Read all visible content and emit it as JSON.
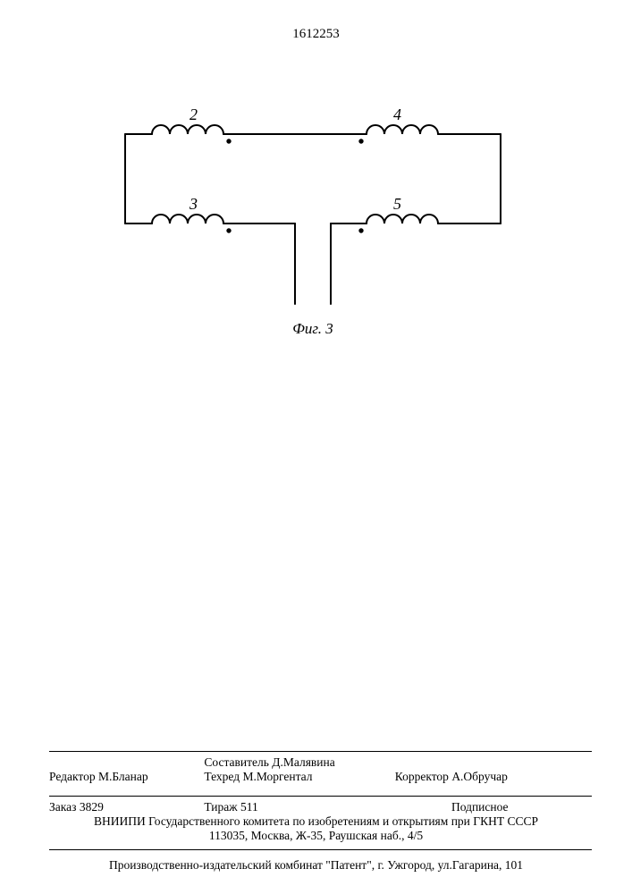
{
  "doc_number": "1612253",
  "figure": {
    "caption": "Фиг. 3",
    "labels": {
      "l2": "2",
      "l3": "3",
      "l4": "4",
      "l5": "5"
    },
    "stroke": "#000000",
    "stroke_width": 2,
    "coil_radius": 10,
    "dot_radius": 2.7
  },
  "footer": {
    "editor_label": "Редактор",
    "editor": "М.Бланар",
    "compiler_label": "Составитель",
    "compiler": "Д.Малявина",
    "techred_label": "Техред",
    "techred": "М.Моргентал",
    "corrector_label": "Корректор",
    "corrector": "А.Обручар",
    "order_label": "Заказ",
    "order": "3829",
    "tirazh_label": "Тираж",
    "tirazh": "511",
    "subscription": "Подписное",
    "org_line1": "ВНИИПИ Государственного комитета по изобретениям и открытиям при ГКНТ СССР",
    "org_line2": "113035, Москва, Ж-35, Раушская наб., 4/5",
    "publisher": "Производственно-издательский комбинат \"Патент\", г. Ужгород, ул.Гагарина, 101"
  }
}
